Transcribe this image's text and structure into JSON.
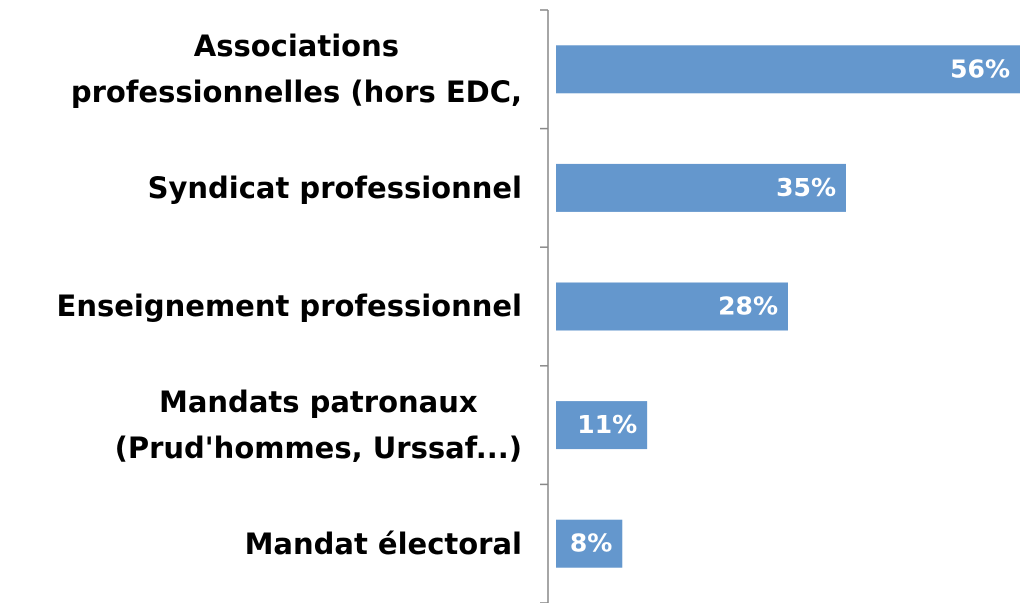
{
  "chart_data": {
    "type": "bar",
    "orientation": "horizontal",
    "categories": [
      "Associations\nprofessionnelles (hors EDC,",
      "Syndicat professionnel",
      "Enseignement professionnel",
      "Mandats patronaux\n(Prud'hommes, Urssaf...)",
      "Mandat électoral"
    ],
    "values": [
      56,
      35,
      28,
      11,
      8
    ],
    "value_labels": [
      "56%",
      "35%",
      "28%",
      "11%",
      "8%"
    ],
    "color": "#6497cd"
  }
}
